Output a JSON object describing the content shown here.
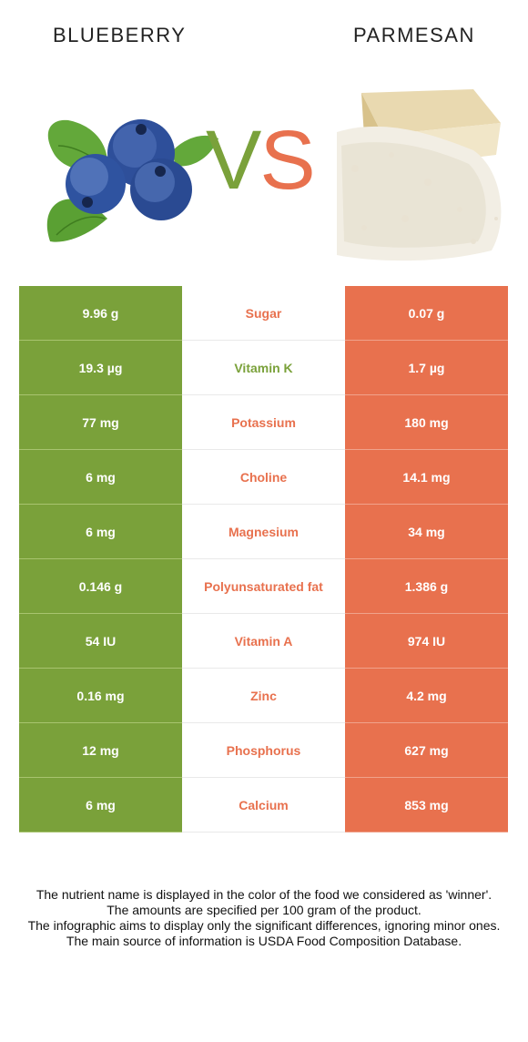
{
  "header": {
    "left_food": "BLUEBERRY",
    "right_food": "PARMESAN",
    "vs_v": "V",
    "vs_s": "S"
  },
  "colors": {
    "left_accent": "#7aa13a",
    "right_accent": "#e8714e"
  },
  "rows": [
    {
      "left": "9.96 g",
      "nutrient": "Sugar",
      "right": "0.07 g",
      "winner": "right"
    },
    {
      "left": "19.3 µg",
      "nutrient": "Vitamin K",
      "right": "1.7 µg",
      "winner": "left"
    },
    {
      "left": "77 mg",
      "nutrient": "Potassium",
      "right": "180 mg",
      "winner": "right"
    },
    {
      "left": "6 mg",
      "nutrient": "Choline",
      "right": "14.1 mg",
      "winner": "right"
    },
    {
      "left": "6 mg",
      "nutrient": "Magnesium",
      "right": "34 mg",
      "winner": "right"
    },
    {
      "left": "0.146 g",
      "nutrient": "Polyunsaturated fat",
      "right": "1.386 g",
      "winner": "right"
    },
    {
      "left": "54 IU",
      "nutrient": "Vitamin A",
      "right": "974 IU",
      "winner": "right"
    },
    {
      "left": "0.16 mg",
      "nutrient": "Zinc",
      "right": "4.2 mg",
      "winner": "right"
    },
    {
      "left": "12 mg",
      "nutrient": "Phosphorus",
      "right": "627 mg",
      "winner": "right"
    },
    {
      "left": "6 mg",
      "nutrient": "Calcium",
      "right": "853 mg",
      "winner": "right"
    }
  ],
  "footer": {
    "line1": "The nutrient name is displayed in the color of the food we considered as 'winner'.",
    "line2": "The amounts are specified per 100 gram of the product.",
    "line3": "The infographic aims to display only the significant differences, ignoring minor ones.",
    "line4": "The main source of information is USDA Food Composition Database."
  }
}
